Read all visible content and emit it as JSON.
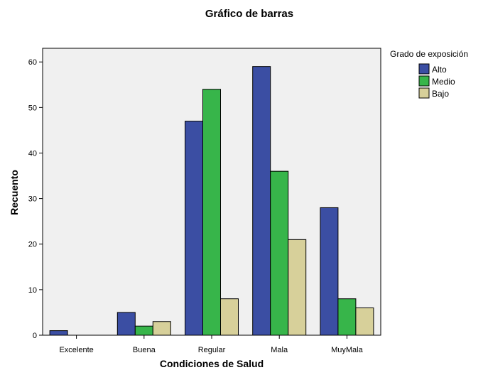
{
  "chart_data": {
    "type": "bar",
    "title": "Gráfico de barras",
    "xlabel": "Condiciones de Salud",
    "ylabel": "Recuento",
    "categories": [
      "Excelente",
      "Buena",
      "Regular",
      "Mala",
      "MuyMala"
    ],
    "ylim": [
      0,
      63
    ],
    "yticks": [
      0,
      10,
      20,
      30,
      40,
      50,
      60
    ],
    "grid": false,
    "legend": {
      "title": "Grado de exposición",
      "position": "top-right"
    },
    "series": [
      {
        "name": "Alto",
        "values": [
          1,
          5,
          47,
          59,
          28
        ],
        "color": "#3b4ea3"
      },
      {
        "name": "Medio",
        "values": [
          0,
          2,
          54,
          36,
          8
        ],
        "color": "#37b54a"
      },
      {
        "name": "Bajo",
        "values": [
          0,
          3,
          8,
          21,
          6
        ],
        "color": "#d7d09a"
      }
    ],
    "plot_background": "#f0f0f0"
  }
}
